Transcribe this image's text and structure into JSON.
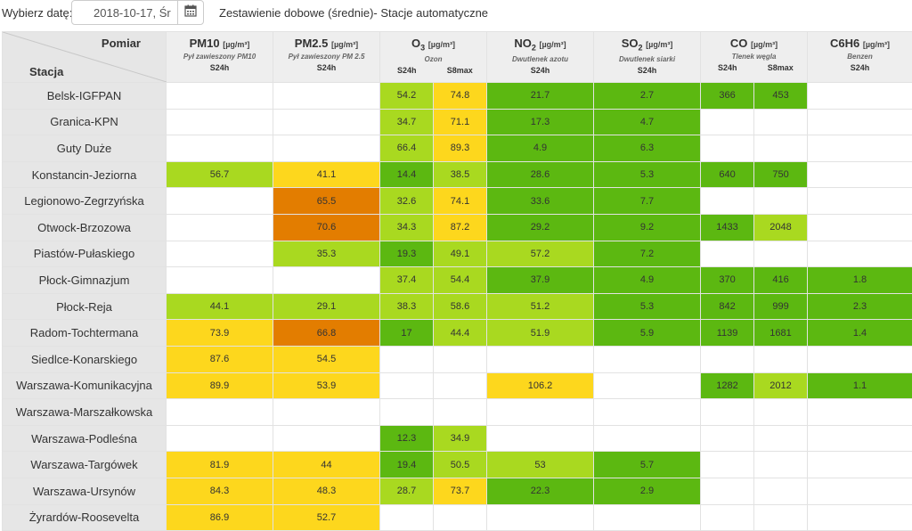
{
  "toolbar": {
    "date_label": "Wybierz datę:",
    "date_value": "2018-10-17, Śr",
    "calendar_icon": "calendar-icon",
    "title": "Zestawienie dobowe (średnie)- Stacje automatyczne"
  },
  "table": {
    "corner_top": "Pomiar",
    "corner_bottom": "Stacja",
    "pollutants": [
      {
        "name": "PM10",
        "sub": "",
        "unit": "[µg/m³]",
        "desc": "Pył zawieszony PM10",
        "cols": [
          "S24h"
        ]
      },
      {
        "name": "PM2.5",
        "sub": "",
        "unit": "[µg/m³]",
        "desc": "Pył zawieszony PM 2.5",
        "cols": [
          "S24h"
        ]
      },
      {
        "name": "O",
        "sub": "3",
        "unit": "[µg/m³]",
        "desc": "Ozon",
        "cols": [
          "S24h",
          "S8max"
        ]
      },
      {
        "name": "NO",
        "sub": "2",
        "unit": "[µg/m³]",
        "desc": "Dwutlenek azotu",
        "cols": [
          "S24h"
        ]
      },
      {
        "name": "SO",
        "sub": "2",
        "unit": "[µg/m³]",
        "desc": "Dwutlenek siarki",
        "cols": [
          "S24h"
        ]
      },
      {
        "name": "CO",
        "sub": "",
        "unit": "[µg/m³]",
        "desc": "Tlenek węgla",
        "cols": [
          "S24h",
          "S8max"
        ]
      },
      {
        "name": "C6H6",
        "sub": "",
        "unit": "[µg/m³]",
        "desc": "Benzen",
        "cols": [
          "S24h"
        ]
      }
    ],
    "colors": {
      "very_good": "#32a00a",
      "good": "#5cb811",
      "moderate": "#a9d920",
      "sufficient": "#fdd71d",
      "bad": "#e37d00",
      "none": "#ffffff"
    },
    "rows": [
      {
        "station": "Belsk-IGFPAN",
        "cells": [
          [
            "",
            "w"
          ],
          [
            "",
            "w"
          ],
          [
            "54.2",
            "lg"
          ],
          [
            "74.8",
            "y"
          ],
          [
            "21.7",
            "g"
          ],
          [
            "2.7",
            "g"
          ],
          [
            "366",
            "g"
          ],
          [
            "453",
            "g"
          ],
          [
            "",
            "w"
          ]
        ]
      },
      {
        "station": "Granica-KPN",
        "cells": [
          [
            "",
            "w"
          ],
          [
            "",
            "w"
          ],
          [
            "34.7",
            "lg"
          ],
          [
            "71.1",
            "y"
          ],
          [
            "17.3",
            "g"
          ],
          [
            "4.7",
            "g"
          ],
          [
            "",
            "w"
          ],
          [
            "",
            "w"
          ],
          [
            "",
            "w"
          ]
        ]
      },
      {
        "station": "Guty Duże",
        "cells": [
          [
            "",
            "w"
          ],
          [
            "",
            "w"
          ],
          [
            "66.4",
            "lg"
          ],
          [
            "89.3",
            "y"
          ],
          [
            "4.9",
            "g"
          ],
          [
            "6.3",
            "g"
          ],
          [
            "",
            "w"
          ],
          [
            "",
            "w"
          ],
          [
            "",
            "w"
          ]
        ]
      },
      {
        "station": "Konstancin-Jeziorna",
        "cells": [
          [
            "56.7",
            "lg"
          ],
          [
            "41.1",
            "y"
          ],
          [
            "14.4",
            "g"
          ],
          [
            "38.5",
            "lg"
          ],
          [
            "28.6",
            "g"
          ],
          [
            "5.3",
            "g"
          ],
          [
            "640",
            "g"
          ],
          [
            "750",
            "g"
          ],
          [
            "",
            "w"
          ]
        ]
      },
      {
        "station": "Legionowo-Zegrzyńska",
        "cells": [
          [
            "",
            "w"
          ],
          [
            "65.5",
            "o"
          ],
          [
            "32.6",
            "lg"
          ],
          [
            "74.1",
            "y"
          ],
          [
            "33.6",
            "g"
          ],
          [
            "7.7",
            "g"
          ],
          [
            "",
            "w"
          ],
          [
            "",
            "w"
          ],
          [
            "",
            "w"
          ]
        ]
      },
      {
        "station": "Otwock-Brzozowa",
        "cells": [
          [
            "",
            "w"
          ],
          [
            "70.6",
            "o"
          ],
          [
            "34.3",
            "lg"
          ],
          [
            "87.2",
            "y"
          ],
          [
            "29.2",
            "g"
          ],
          [
            "9.2",
            "g"
          ],
          [
            "1433",
            "g"
          ],
          [
            "2048",
            "lg"
          ],
          [
            "",
            "w"
          ]
        ]
      },
      {
        "station": "Piastów-Pułaskiego",
        "cells": [
          [
            "",
            "w"
          ],
          [
            "35.3",
            "lg"
          ],
          [
            "19.3",
            "g"
          ],
          [
            "49.1",
            "lg"
          ],
          [
            "57.2",
            "lg"
          ],
          [
            "7.2",
            "g"
          ],
          [
            "",
            "w"
          ],
          [
            "",
            "w"
          ],
          [
            "",
            "w"
          ]
        ]
      },
      {
        "station": "Płock-Gimnazjum",
        "cells": [
          [
            "",
            "w"
          ],
          [
            "",
            "w"
          ],
          [
            "37.4",
            "lg"
          ],
          [
            "54.4",
            "lg"
          ],
          [
            "37.9",
            "g"
          ],
          [
            "4.9",
            "g"
          ],
          [
            "370",
            "g"
          ],
          [
            "416",
            "g"
          ],
          [
            "1.8",
            "g"
          ]
        ]
      },
      {
        "station": "Płock-Reja",
        "cells": [
          [
            "44.1",
            "lg"
          ],
          [
            "29.1",
            "lg"
          ],
          [
            "38.3",
            "lg"
          ],
          [
            "58.6",
            "lg"
          ],
          [
            "51.2",
            "lg"
          ],
          [
            "5.3",
            "g"
          ],
          [
            "842",
            "g"
          ],
          [
            "999",
            "g"
          ],
          [
            "2.3",
            "g"
          ]
        ]
      },
      {
        "station": "Radom-Tochtermana",
        "cells": [
          [
            "73.9",
            "y"
          ],
          [
            "66.8",
            "o"
          ],
          [
            "17",
            "g"
          ],
          [
            "44.4",
            "lg"
          ],
          [
            "51.9",
            "lg"
          ],
          [
            "5.9",
            "g"
          ],
          [
            "1139",
            "g"
          ],
          [
            "1681",
            "g"
          ],
          [
            "1.4",
            "g"
          ]
        ]
      },
      {
        "station": "Siedlce-Konarskiego",
        "cells": [
          [
            "87.6",
            "y"
          ],
          [
            "54.5",
            "y"
          ],
          [
            "",
            "w"
          ],
          [
            "",
            "w"
          ],
          [
            "",
            "w"
          ],
          [
            "",
            "w"
          ],
          [
            "",
            "w"
          ],
          [
            "",
            "w"
          ],
          [
            "",
            "w"
          ]
        ]
      },
      {
        "station": "Warszawa-Komunikacyjna",
        "cells": [
          [
            "89.9",
            "y"
          ],
          [
            "53.9",
            "y"
          ],
          [
            "",
            "w"
          ],
          [
            "",
            "w"
          ],
          [
            "106.2",
            "y"
          ],
          [
            "",
            "w"
          ],
          [
            "1282",
            "g"
          ],
          [
            "2012",
            "lg"
          ],
          [
            "1.1",
            "g"
          ]
        ]
      },
      {
        "station": "Warszawa-Marszałkowska",
        "cells": [
          [
            "",
            "w"
          ],
          [
            "",
            "w"
          ],
          [
            "",
            "w"
          ],
          [
            "",
            "w"
          ],
          [
            "",
            "w"
          ],
          [
            "",
            "w"
          ],
          [
            "",
            "w"
          ],
          [
            "",
            "w"
          ],
          [
            "",
            "w"
          ]
        ]
      },
      {
        "station": "Warszawa-Podleśna",
        "cells": [
          [
            "",
            "w"
          ],
          [
            "",
            "w"
          ],
          [
            "12.3",
            "g"
          ],
          [
            "34.9",
            "lg"
          ],
          [
            "",
            "w"
          ],
          [
            "",
            "w"
          ],
          [
            "",
            "w"
          ],
          [
            "",
            "w"
          ],
          [
            "",
            "w"
          ]
        ]
      },
      {
        "station": "Warszawa-Targówek",
        "cells": [
          [
            "81.9",
            "y"
          ],
          [
            "44",
            "y"
          ],
          [
            "19.4",
            "g"
          ],
          [
            "50.5",
            "lg"
          ],
          [
            "53",
            "lg"
          ],
          [
            "5.7",
            "g"
          ],
          [
            "",
            "w"
          ],
          [
            "",
            "w"
          ],
          [
            "",
            "w"
          ]
        ]
      },
      {
        "station": "Warszawa-Ursynów",
        "cells": [
          [
            "84.3",
            "y"
          ],
          [
            "48.3",
            "y"
          ],
          [
            "28.7",
            "lg"
          ],
          [
            "73.7",
            "y"
          ],
          [
            "22.3",
            "g"
          ],
          [
            "2.9",
            "g"
          ],
          [
            "",
            "w"
          ],
          [
            "",
            "w"
          ],
          [
            "",
            "w"
          ]
        ]
      },
      {
        "station": "Żyrardów-Roosevelta",
        "cells": [
          [
            "86.9",
            "y"
          ],
          [
            "52.7",
            "y"
          ],
          [
            "",
            "w"
          ],
          [
            "",
            "w"
          ],
          [
            "",
            "w"
          ],
          [
            "",
            "w"
          ],
          [
            "",
            "w"
          ],
          [
            "",
            "w"
          ],
          [
            "",
            "w"
          ]
        ]
      }
    ]
  }
}
